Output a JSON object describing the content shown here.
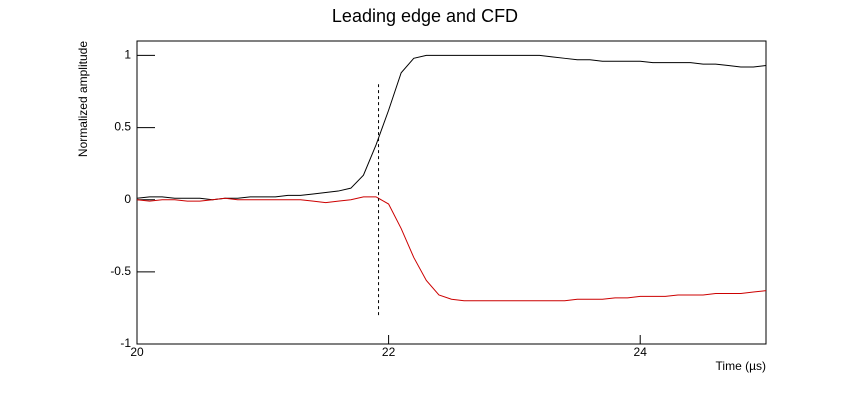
{
  "chart_data": {
    "type": "line",
    "title": "Leading edge and CFD",
    "xlabel": "Time (µs)",
    "ylabel": "Normalized amplitude",
    "x": [
      20.0,
      20.1,
      20.2,
      20.3,
      20.4,
      20.5,
      20.6,
      20.7,
      20.8,
      20.9,
      21.0,
      21.1,
      21.2,
      21.3,
      21.4,
      21.5,
      21.6,
      21.7,
      21.8,
      21.9,
      22.0,
      22.1,
      22.2,
      22.3,
      22.4,
      22.5,
      22.6,
      22.7,
      22.8,
      22.9,
      23.0,
      23.1,
      23.2,
      23.3,
      23.4,
      23.5,
      23.6,
      23.7,
      23.8,
      23.9,
      24.0,
      24.1,
      24.2,
      24.3,
      24.4,
      24.5,
      24.6,
      24.7,
      24.8,
      24.9,
      25.0
    ],
    "series": [
      {
        "color": "#000000",
        "values": [
          0.01,
          0.02,
          0.02,
          0.01,
          0.01,
          0.01,
          0.0,
          0.01,
          0.01,
          0.02,
          0.02,
          0.02,
          0.03,
          0.03,
          0.04,
          0.05,
          0.06,
          0.08,
          0.17,
          0.38,
          0.62,
          0.88,
          0.98,
          1.0,
          1.0,
          1.0,
          1.0,
          1.0,
          1.0,
          1.0,
          1.0,
          1.0,
          1.0,
          0.99,
          0.98,
          0.97,
          0.97,
          0.96,
          0.96,
          0.96,
          0.96,
          0.95,
          0.95,
          0.95,
          0.95,
          0.94,
          0.94,
          0.93,
          0.92,
          0.92,
          0.93
        ]
      },
      {
        "color": "#cc0000",
        "values": [
          0.0,
          -0.01,
          0.0,
          0.0,
          -0.01,
          -0.01,
          0.0,
          0.01,
          0.0,
          0.0,
          0.0,
          0.0,
          0.0,
          0.0,
          -0.01,
          -0.02,
          -0.01,
          0.0,
          0.02,
          0.02,
          -0.03,
          -0.2,
          -0.4,
          -0.56,
          -0.66,
          -0.69,
          -0.7,
          -0.7,
          -0.7,
          -0.7,
          -0.7,
          -0.7,
          -0.7,
          -0.7,
          -0.7,
          -0.69,
          -0.69,
          -0.69,
          -0.68,
          -0.68,
          -0.67,
          -0.67,
          -0.67,
          -0.66,
          -0.66,
          -0.66,
          -0.65,
          -0.65,
          -0.65,
          -0.64,
          -0.63
        ]
      }
    ],
    "marker": {
      "x": 21.92,
      "ymin": -0.8,
      "ymax": 0.8
    },
    "xlim": [
      20,
      25
    ],
    "ylim": [
      -1,
      1.1
    ],
    "xticks": [
      20,
      22,
      24
    ],
    "yticks": [
      -1,
      -0.5,
      0,
      0.5,
      1
    ]
  }
}
